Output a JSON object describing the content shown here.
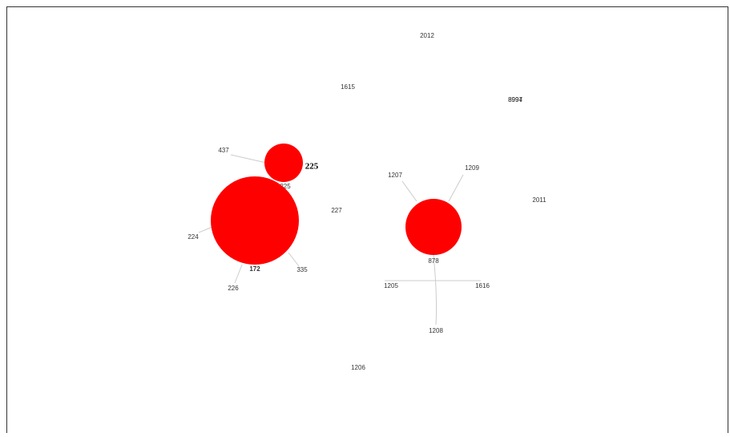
{
  "nodes": [
    {
      "label": "2012"
    },
    {
      "label": "1615"
    },
    {
      "label": "8997"
    },
    {
      "label": "8994"
    },
    {
      "label": "437"
    },
    {
      "label": "225"
    },
    {
      "label": "225"
    },
    {
      "label": "1207"
    },
    {
      "label": "1209"
    },
    {
      "label": "227"
    },
    {
      "label": "2011"
    },
    {
      "label": "224"
    },
    {
      "label": "172"
    },
    {
      "label": "335"
    },
    {
      "label": "226"
    },
    {
      "label": "878"
    },
    {
      "label": "1205"
    },
    {
      "label": "1616"
    },
    {
      "label": "1208"
    },
    {
      "label": "1206"
    }
  ]
}
